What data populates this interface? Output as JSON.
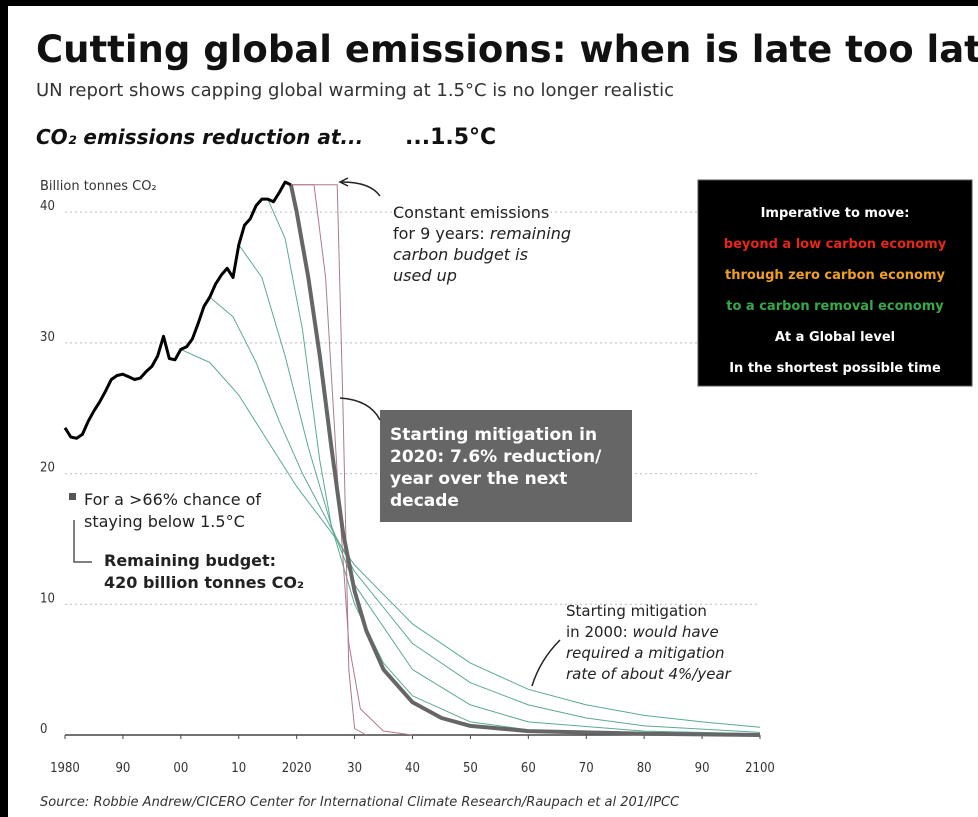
{
  "chart_data": {
    "type": "line",
    "title": "Cutting global emissions: when is late too late?",
    "subtitle": "UN report shows capping global warming at 1.5°C is no longer realistic",
    "section_label": "CO₂ emissions reduction at...",
    "scenario_label": "...1.5°C",
    "ylabel": "Billion tonnes CO₂",
    "source": "Source: Robbie Andrew/CICERO Center for International Climate Research/Raupach et al 201/IPCC",
    "xlim": [
      1980,
      2100
    ],
    "ylim": [
      0,
      42
    ],
    "xticks": [
      1980,
      {
        "value": 1990,
        "label": "90"
      },
      {
        "value": 2000,
        "label": "00"
      },
      {
        "value": 2010,
        "label": "10"
      },
      2020,
      {
        "value": 2030,
        "label": "30"
      },
      {
        "value": 2040,
        "label": "40"
      },
      {
        "value": 2050,
        "label": "50"
      },
      {
        "value": 2060,
        "label": "60"
      },
      {
        "value": 2070,
        "label": "70"
      },
      {
        "value": 2080,
        "label": "80"
      },
      {
        "value": 2090,
        "label": "90"
      },
      2100
    ],
    "yticks": [
      0,
      10,
      20,
      30,
      40
    ],
    "grid": true,
    "series": [
      {
        "color": "#5aab8c",
        "width": 1,
        "x": [
          2000,
          2005,
          2010,
          2015,
          2020,
          2026,
          2030,
          2040,
          2050,
          2060,
          2070,
          2080,
          2090,
          2100
        ],
        "values": [
          29.5,
          28.5,
          26,
          22.5,
          19,
          15.5,
          13,
          8.5,
          5.5,
          3.5,
          2.3,
          1.5,
          1,
          0.6
        ]
      },
      {
        "color": "#5aab8c",
        "width": 1,
        "x": [
          2005,
          2009,
          2013,
          2017,
          2021,
          2026,
          2030,
          2040,
          2050,
          2060,
          2070,
          2080,
          2100
        ],
        "values": [
          33.5,
          32,
          28.5,
          24,
          20,
          15.8,
          12.5,
          7,
          4,
          2.3,
          1.3,
          0.7,
          0.2
        ]
      },
      {
        "color": "#5aab8c",
        "width": 1,
        "x": [
          2010,
          2014,
          2018,
          2022,
          2026,
          2030,
          2040,
          2050,
          2060,
          2080,
          2100
        ],
        "values": [
          37.5,
          35,
          29,
          22,
          16,
          11.5,
          5,
          2.3,
          1,
          0.3,
          0.1
        ]
      },
      {
        "color": "#5aab8c",
        "width": 1,
        "x": [
          2015,
          2018,
          2021,
          2024,
          2026,
          2030,
          2035,
          2040,
          2050,
          2060,
          2080,
          2100
        ],
        "values": [
          41,
          38,
          31,
          21,
          16,
          10,
          5.5,
          3,
          1,
          0.4,
          0.1,
          0
        ]
      },
      {
        "color": "#b07890",
        "width": 1,
        "x": [
          2019,
          2023,
          2025,
          2027,
          2029,
          2031,
          2035,
          2040
        ],
        "values": [
          42.1,
          42.1,
          35,
          20,
          7,
          2,
          0.3,
          0
        ]
      },
      {
        "color": "#b07890",
        "width": 1,
        "x": [
          2019,
          2027,
          2028,
          2029,
          2030,
          2032
        ],
        "values": [
          42.1,
          42.1,
          25,
          5,
          0.5,
          0
        ]
      },
      {
        "color": "#666666",
        "width": 4,
        "x": [
          2019,
          2020,
          2022,
          2024,
          2026,
          2028,
          2030,
          2032,
          2035,
          2040,
          2045,
          2050,
          2060,
          2080,
          2100
        ],
        "values": [
          42.1,
          40,
          35,
          29,
          22,
          15.5,
          11,
          8,
          5,
          2.5,
          1.3,
          0.7,
          0.3,
          0.1,
          0
        ]
      },
      {
        "color": "#000000",
        "width": 3,
        "x": [
          1980,
          1981,
          1982,
          1983,
          1984,
          1985,
          1986,
          1987,
          1988,
          1989,
          1990,
          1991,
          1992,
          1993,
          1994,
          1995,
          1996,
          1997,
          1998,
          1999,
          2000,
          2001,
          2002,
          2003,
          2004,
          2005,
          2006,
          2007,
          2008,
          2009,
          2010,
          2011,
          2012,
          2013,
          2014,
          2015,
          2016,
          2017,
          2018,
          2019
        ],
        "values": [
          23.5,
          22.8,
          22.7,
          23,
          24,
          24.8,
          25.5,
          26.3,
          27.2,
          27.5,
          27.6,
          27.4,
          27.2,
          27.3,
          27.8,
          28.2,
          29,
          30.5,
          28.8,
          28.7,
          29.5,
          29.7,
          30.3,
          31.5,
          32.8,
          33.5,
          34.5,
          35.2,
          35.7,
          35,
          37.5,
          39,
          39.5,
          40.5,
          41,
          41,
          40.8,
          41.5,
          42.3,
          42.1
        ]
      }
    ],
    "annotations": [
      {
        "lines": [
          {
            "normal": "Constant emissions"
          },
          {
            "normal": "for 9 years: ",
            "italic": "remaining"
          },
          {
            "italic": "carbon budget is"
          },
          {
            "italic": "used up"
          }
        ]
      },
      {
        "lines": [
          {
            "normal": "Starting mitigation in"
          },
          {
            "normal": "2020: 7.6% reduction/"
          },
          {
            "normal": "year over the next"
          },
          {
            "normal": "decade"
          }
        ]
      },
      {
        "lines": [
          {
            "normal": "For a >66% chance of"
          },
          {
            "normal": "staying below 1.5°C"
          }
        ]
      },
      {
        "lines": [
          {
            "normal": "Remaining budget:"
          },
          {
            "normal": "420 billion tonnes CO₂"
          }
        ]
      },
      {
        "lines": [
          {
            "normal": "Starting mitigation"
          },
          {
            "normal": "in 2000: ",
            "italic": "would have"
          },
          {
            "italic": "required a mitigation"
          },
          {
            "italic": "rate of about 4%/year"
          }
        ]
      }
    ],
    "callout": [
      {
        "text": "Imperative to move:",
        "color": "#ffffff"
      },
      {
        "text": "beyond a low carbon economy",
        "color": "#e8251c"
      },
      {
        "text": "through zero carbon economy",
        "color": "#f0a020"
      },
      {
        "text": "to a carbon removal economy",
        "color": "#36a84a"
      },
      {
        "text": "At a Global level",
        "color": "#ffffff"
      },
      {
        "text": "In the shortest possible time",
        "color": "#ffffff"
      }
    ]
  }
}
